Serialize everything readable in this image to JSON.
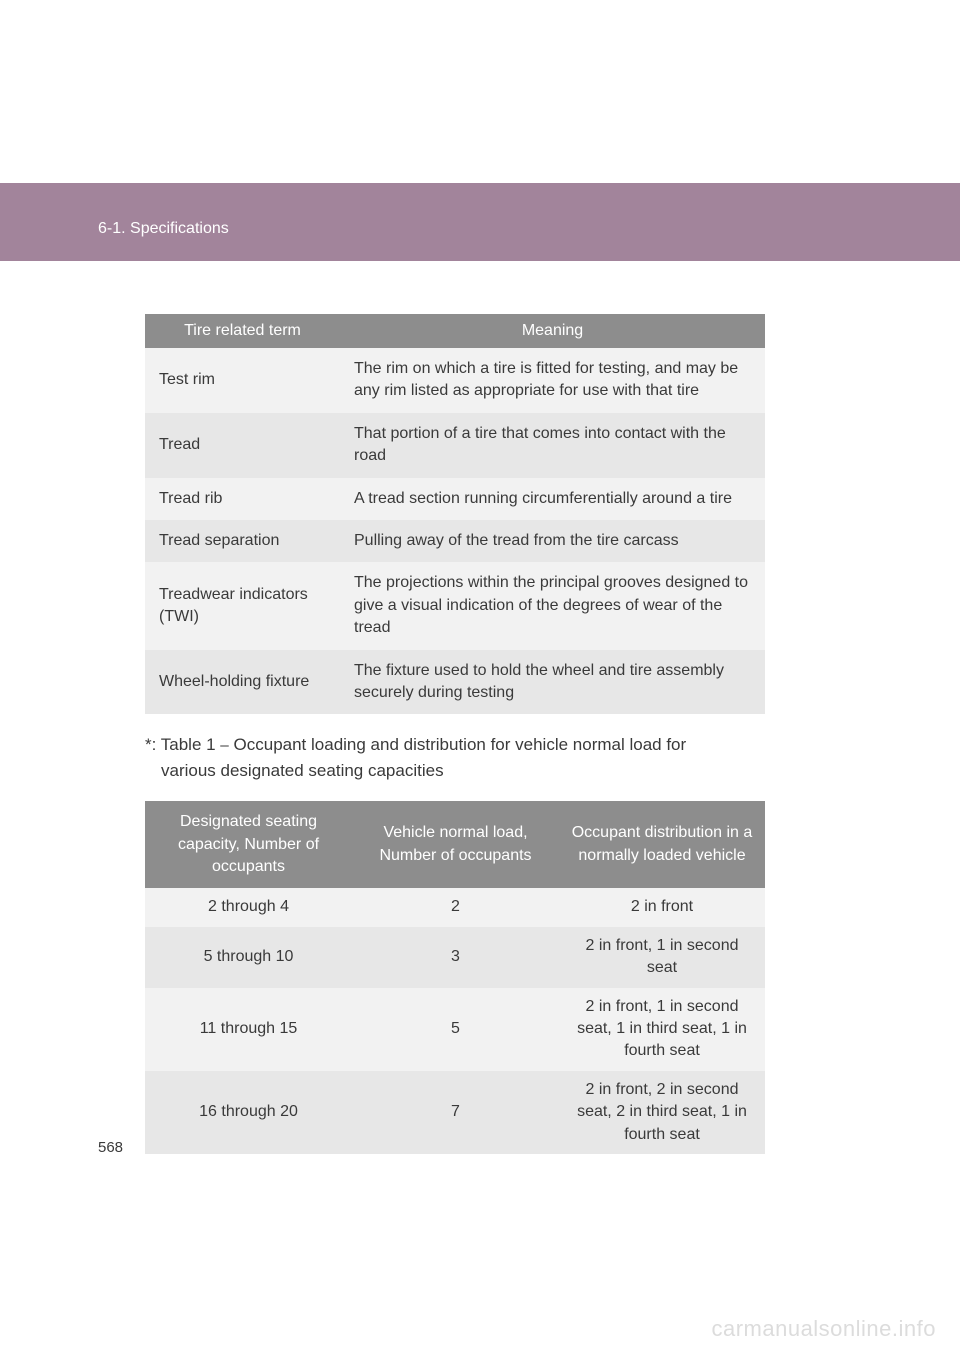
{
  "header": {
    "section_title": "6-1. Specifications"
  },
  "table1": {
    "headers": [
      "Tire related term",
      "Meaning"
    ],
    "rows": [
      {
        "term": "Test rim",
        "meaning": "The rim on which a tire is fitted for testing, and may be any rim listed as appropriate for use with that tire"
      },
      {
        "term": "Tread",
        "meaning": "That portion of a tire that comes into contact with the road"
      },
      {
        "term": "Tread rib",
        "meaning": "A tread section running circumferentially around a tire"
      },
      {
        "term": "Tread separation",
        "meaning": "Pulling away of the tread from the tire carcass"
      },
      {
        "term": "Treadwear indicators (TWI)",
        "meaning": "The projections within the principal grooves designed to give a visual indication of the degrees of wear of the tread"
      },
      {
        "term": "Wheel-holding fixture",
        "meaning": "The fixture used to hold the wheel and tire assembly securely during testing"
      }
    ]
  },
  "note": {
    "line1": "*: Table 1 ⎯ Occupant loading and distribution for vehicle normal load for",
    "line2": "various designated seating capacities"
  },
  "table2": {
    "headers": [
      "Designated seating capacity, Number of occupants",
      "Vehicle normal load, Number of occupants",
      "Occupant distribution in a normally loaded vehicle"
    ],
    "rows": [
      {
        "c1": "2 through 4",
        "c2": "2",
        "c3": "2 in front"
      },
      {
        "c1": "5 through 10",
        "c2": "3",
        "c3": "2 in front, 1 in second seat"
      },
      {
        "c1": "11 through 15",
        "c2": "5",
        "c3": "2 in front, 1 in second seat, 1 in third seat, 1 in fourth seat"
      },
      {
        "c1": "16 through 20",
        "c2": "7",
        "c3": "2 in front, 2 in second seat, 2 in third seat, 1 in fourth seat"
      }
    ]
  },
  "page_number": "568",
  "watermark": "carmanualsonline.info",
  "colors": {
    "band": "#a2849b",
    "th_bg": "#8d8d8d",
    "row_bg": "#e7e7e7",
    "row_alt_bg": "#f2f2f2",
    "text": "#3a3a3a",
    "watermark": "#dcdcdc"
  }
}
